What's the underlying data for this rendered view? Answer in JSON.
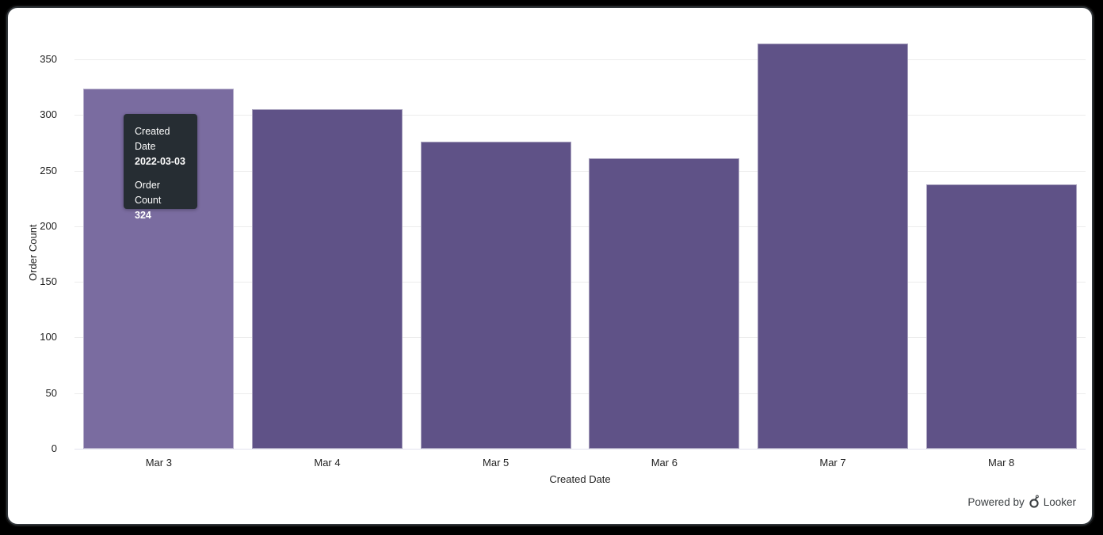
{
  "chart_data": {
    "type": "bar",
    "title": "",
    "categories": [
      "Mar 3",
      "Mar 4",
      "Mar 5",
      "Mar 6",
      "Mar 7",
      "Mar 8"
    ],
    "values": [
      324,
      305,
      276,
      261,
      364,
      238
    ],
    "xlabel": "Created Date",
    "ylabel": "Order Count",
    "ylim": [
      0,
      375
    ],
    "yticks": [
      0,
      50,
      100,
      150,
      200,
      250,
      300,
      350
    ],
    "grid": true,
    "legend_position": "none",
    "bar_color": "#5f5287",
    "bar_hover_color": "#7a6ca0",
    "hovered_index": 0
  },
  "tooltip": {
    "dimension_label": "Created Date",
    "dimension_value": "2022-03-03",
    "measure_label": "Order Count",
    "measure_value": "324",
    "background": "#262d33",
    "text_color": "#ffffff"
  },
  "footer": {
    "powered_by": "Powered by",
    "brand": "Looker"
  },
  "colors": {
    "grid": "#ececec",
    "baseline": "#e3e3ee",
    "axis_text": "#1f1f1f",
    "footer_text": "#3c4043",
    "window_background": "#ffffff",
    "frame_background": "#000000"
  }
}
